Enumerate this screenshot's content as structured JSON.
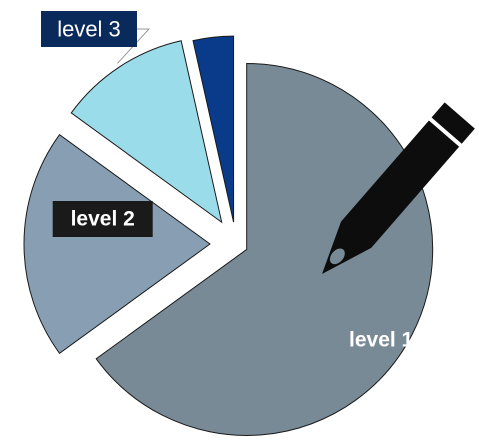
{
  "chart_data": {
    "type": "pie",
    "title": "",
    "exploded": true,
    "legend": "none",
    "slices": [
      {
        "label": "level 1",
        "value": 65,
        "color": "#788a96",
        "label_fill": "none",
        "label_color": "#ffffff"
      },
      {
        "label": "level 2",
        "value": 20,
        "color": "#889fb3",
        "label_fill": "#1a1a1a",
        "label_color": "#ffffff"
      },
      {
        "label": "level 3",
        "value": 11.5,
        "color": "#9adcea",
        "label_fill": "#0b2a5c",
        "label_color": "#ffffff"
      },
      {
        "label": "",
        "value": 3.5,
        "color": "#0a3a8a",
        "label_fill": "none",
        "label_color": "#ffffff"
      }
    ]
  },
  "decoration": {
    "pencil_color": "#0d0d0d"
  }
}
